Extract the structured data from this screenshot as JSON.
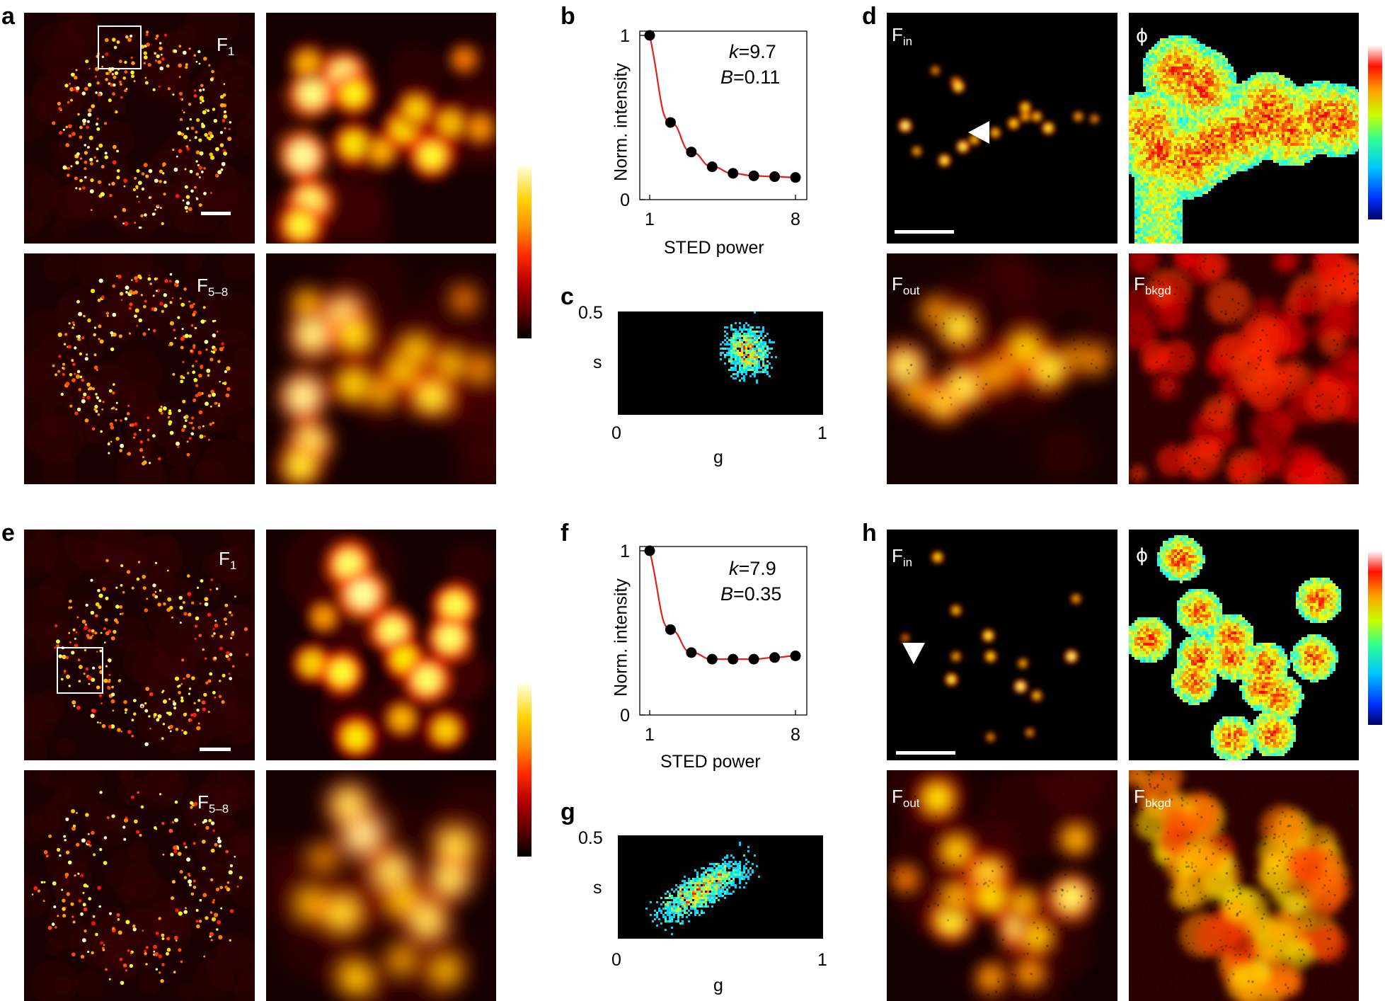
{
  "panels": {
    "a": {
      "letter": "a",
      "top_label_main": "F",
      "top_label_sub": "1",
      "bottom_label_main": "F",
      "bottom_label_sub": "5–8"
    },
    "b": {
      "letter": "b"
    },
    "c": {
      "letter": "c"
    },
    "d": {
      "letter": "d",
      "fin_main": "F",
      "fin_sub": "in",
      "phi": "ϕ",
      "fout_main": "F",
      "fout_sub": "out",
      "fbkgd_main": "F",
      "fbkgd_sub": "bkgd"
    },
    "e": {
      "letter": "e",
      "top_label_main": "F",
      "top_label_sub": "1",
      "bottom_label_main": "F",
      "bottom_label_sub": "5–8"
    },
    "f": {
      "letter": "f"
    },
    "g": {
      "letter": "g"
    },
    "h": {
      "letter": "h",
      "fin_main": "F",
      "fin_sub": "in",
      "phi": "ϕ",
      "fout_main": "F",
      "fout_sub": "out",
      "fbkgd_main": "F",
      "fbkgd_sub": "bkgd"
    }
  },
  "chart_data": [
    {
      "id": "b",
      "type": "scatter",
      "xlabel": "STED power",
      "ylabel": "Norm. intensity",
      "xlim": [
        1,
        8
      ],
      "ylim": [
        0,
        1
      ],
      "xticks": [
        "1",
        "8"
      ],
      "yticks": [
        "0",
        "1"
      ],
      "x": [
        1,
        2,
        3,
        4,
        5,
        6,
        7,
        8
      ],
      "y": [
        1.0,
        0.47,
        0.29,
        0.2,
        0.16,
        0.145,
        0.14,
        0.135
      ],
      "fit": {
        "k": 9.7,
        "B": 0.11
      },
      "annotation_k": "=9.7",
      "annotation_B": "=0.11",
      "annotation_k_var": "k",
      "annotation_B_var": "B",
      "colors": {
        "points": "#000000",
        "fit": "#e3201b"
      }
    },
    {
      "id": "f",
      "type": "scatter",
      "xlabel": "STED power",
      "ylabel": "Norm. intensity",
      "xlim": [
        1,
        8
      ],
      "ylim": [
        0,
        1
      ],
      "xticks": [
        "1",
        "8"
      ],
      "yticks": [
        "0",
        "1"
      ],
      "x": [
        1,
        2,
        3,
        4,
        5,
        6,
        7,
        8
      ],
      "y": [
        1.0,
        0.52,
        0.38,
        0.34,
        0.34,
        0.34,
        0.35,
        0.36
      ],
      "fit": {
        "k": 7.9,
        "B": 0.35
      },
      "annotation_k": "=7.9",
      "annotation_B": "=0.35",
      "annotation_k_var": "k",
      "annotation_B_var": "B",
      "colors": {
        "points": "#000000",
        "fit": "#e3201b"
      }
    },
    {
      "id": "c",
      "type": "heatmap",
      "xlabel": "g",
      "ylabel": "s",
      "xlim": [
        0,
        1
      ],
      "ylim": [
        0,
        0.5
      ],
      "xticks": [
        "0",
        "1"
      ],
      "ytick_top": "0.5"
    },
    {
      "id": "g",
      "type": "heatmap",
      "xlabel": "g",
      "ylabel": "s",
      "xlim": [
        0,
        1
      ],
      "ylim": [
        0,
        0.5
      ],
      "xticks": [
        "0",
        "1"
      ],
      "ytick_top": "0.5"
    }
  ],
  "colors": {
    "hot": [
      "#000000",
      "#5a0000",
      "#b30000",
      "#ff2a00",
      "#ff8c00",
      "#ffd200",
      "#ffffb0"
    ],
    "jet": [
      "#00006a",
      "#0030ff",
      "#00c8ff",
      "#30ff90",
      "#c8ff00",
      "#ffa000",
      "#ff1000",
      "#ffffff"
    ]
  }
}
